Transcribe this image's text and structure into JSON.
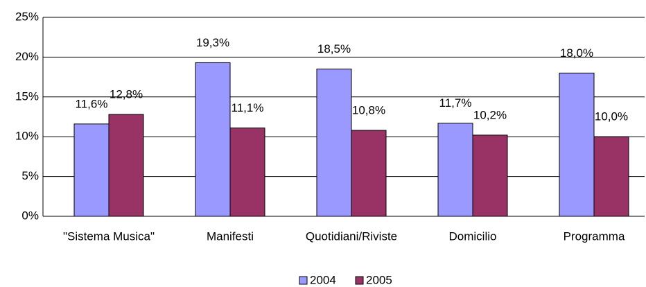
{
  "chart_data": {
    "type": "bar",
    "categories": [
      "\"Sistema Musica\"",
      "Manifesti",
      "Quotidiani/Riviste",
      "Domicilio",
      "Programma"
    ],
    "series": [
      {
        "name": "2004",
        "color": "#9999ff",
        "values": [
          11.6,
          19.3,
          18.5,
          11.7,
          18.0
        ],
        "value_labels": [
          "11,6%",
          "19,3%",
          "18,5%",
          "11,7%",
          "18,0%"
        ]
      },
      {
        "name": "2005",
        "color": "#993366",
        "values": [
          12.8,
          11.1,
          10.8,
          10.2,
          10.0
        ],
        "value_labels": [
          "12,8%",
          "11,1%",
          "10,8%",
          "10,2%",
          "10,0%"
        ]
      }
    ],
    "ylim": [
      0,
      25
    ],
    "yticks": [
      {
        "value": 0,
        "label": "0%"
      },
      {
        "value": 5,
        "label": "5%"
      },
      {
        "value": 10,
        "label": "10%"
      },
      {
        "value": 15,
        "label": "15%"
      },
      {
        "value": 20,
        "label": "20%"
      },
      {
        "value": 25,
        "label": "25%"
      }
    ],
    "grid": true,
    "legend": "bottom"
  }
}
